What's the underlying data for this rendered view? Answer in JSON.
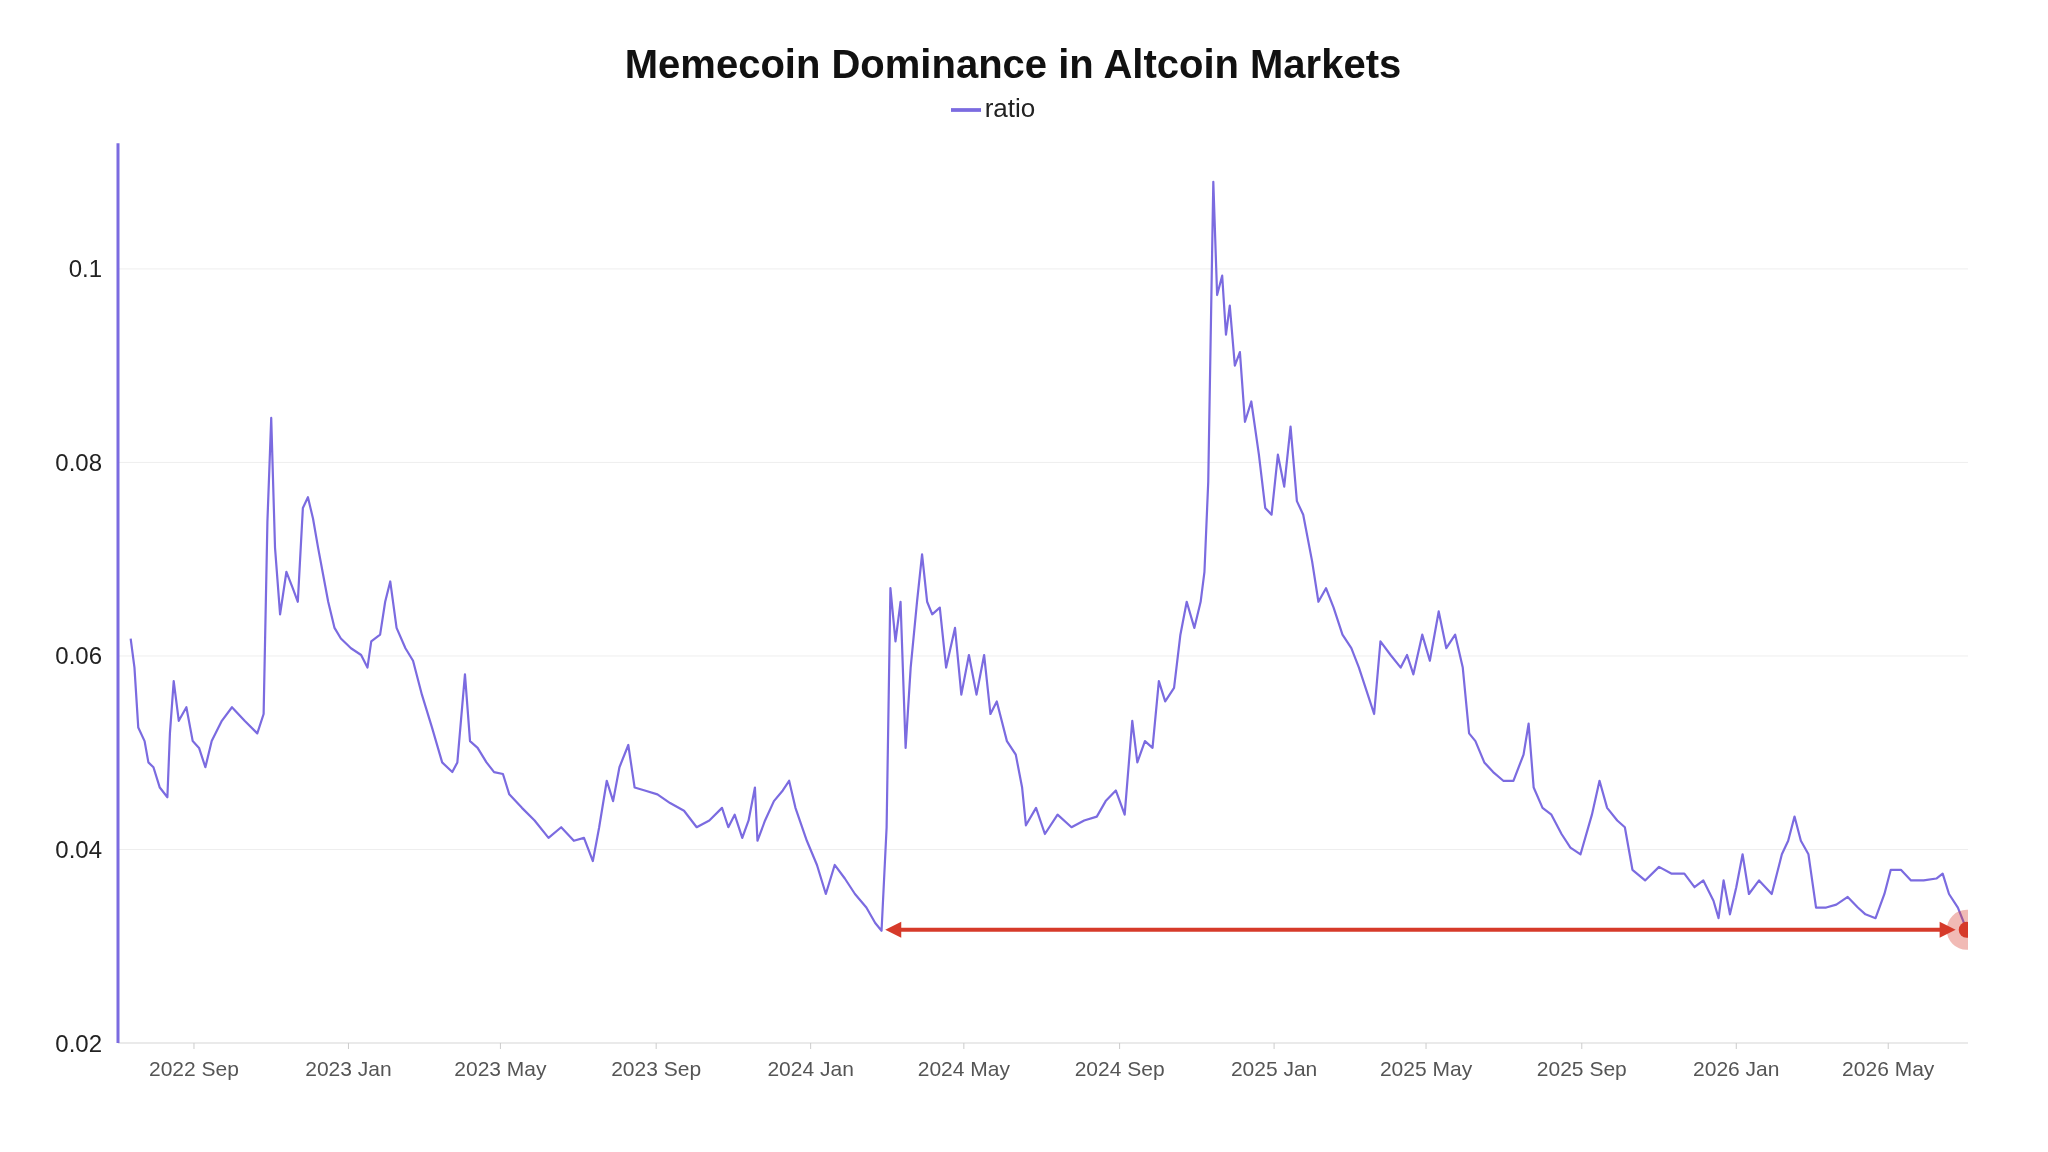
{
  "chart_data": {
    "type": "line",
    "title": "Memecoin Dominance in Altcoin Markets",
    "legend": "top",
    "grid": "y",
    "xlim": [
      "2022-07-03",
      "2026-07-03"
    ],
    "ylim": [
      0.02,
      0.113
    ],
    "yticks": [
      0.02,
      0.04,
      0.06,
      0.08,
      0.1
    ],
    "xticks": [
      {
        "value": "2022-09-01",
        "label": "2022 Sep"
      },
      {
        "value": "2023-01-01",
        "label": "2023 Jan"
      },
      {
        "value": "2023-05-01",
        "label": "2023 May"
      },
      {
        "value": "2023-09-01",
        "label": "2023 Sep"
      },
      {
        "value": "2024-01-01",
        "label": "2024 Jan"
      },
      {
        "value": "2024-05-01",
        "label": "2024 May"
      },
      {
        "value": "2024-09-01",
        "label": "2024 Sep"
      },
      {
        "value": "2025-01-01",
        "label": "2025 Jan"
      },
      {
        "value": "2025-05-01",
        "label": "2025 May"
      },
      {
        "value": "2025-09-01",
        "label": "2025 Sep"
      },
      {
        "value": "2026-01-01",
        "label": "2026 Jan"
      },
      {
        "value": "2026-05-01",
        "label": "2026 May"
      }
    ],
    "series": [
      {
        "name": "ratio",
        "color": "#7b6be0",
        "marker": "none",
        "x": [
          "2022-07-13",
          "2022-07-16",
          "2022-07-19",
          "2022-07-24",
          "2022-07-27",
          "2022-07-31",
          "2022-08-05",
          "2022-08-11",
          "2022-08-13",
          "2022-08-16",
          "2022-08-20",
          "2022-08-26",
          "2022-08-31",
          "2022-09-05",
          "2022-09-10",
          "2022-09-15",
          "2022-09-23",
          "2022-10-01",
          "2022-10-11",
          "2022-10-21",
          "2022-10-26",
          "2022-10-29",
          "2022-11-01",
          "2022-11-04",
          "2022-11-08",
          "2022-11-13",
          "2022-11-18",
          "2022-11-22",
          "2022-11-26",
          "2022-11-30",
          "2022-12-04",
          "2022-12-08",
          "2022-12-12",
          "2022-12-16",
          "2022-12-21",
          "2022-12-26",
          "2023-01-03",
          "2023-01-11",
          "2023-01-16",
          "2023-01-19",
          "2023-01-26",
          "2023-01-30",
          "2023-02-03",
          "2023-02-08",
          "2023-02-15",
          "2023-02-21",
          "2023-02-28",
          "2023-03-08",
          "2023-03-16",
          "2023-03-24",
          "2023-03-28",
          "2023-04-03",
          "2023-04-07",
          "2023-04-13",
          "2023-04-20",
          "2023-04-26",
          "2023-05-03",
          "2023-05-08",
          "2023-05-18",
          "2023-05-28",
          "2023-06-08",
          "2023-06-18",
          "2023-06-28",
          "2023-07-06",
          "2023-07-13",
          "2023-07-18",
          "2023-07-24",
          "2023-07-29",
          "2023-08-03",
          "2023-08-10",
          "2023-08-15",
          "2023-08-23",
          "2023-09-02",
          "2023-09-12",
          "2023-09-23",
          "2023-10-03",
          "2023-10-13",
          "2023-10-23",
          "2023-10-28",
          "2023-11-02",
          "2023-11-08",
          "2023-11-13",
          "2023-11-18",
          "2023-11-20",
          "2023-11-26",
          "2023-12-03",
          "2023-12-10",
          "2023-12-15",
          "2023-12-20",
          "2023-12-29",
          "2024-01-06",
          "2024-01-13",
          "2024-01-20",
          "2024-01-28",
          "2024-02-05",
          "2024-02-14",
          "2024-02-21",
          "2024-02-26",
          "2024-03-01",
          "2024-03-04",
          "2024-03-08",
          "2024-03-12",
          "2024-03-16",
          "2024-03-20",
          "2024-03-25",
          "2024-03-29",
          "2024-04-02",
          "2024-04-06",
          "2024-04-12",
          "2024-04-17",
          "2024-04-24",
          "2024-04-29",
          "2024-05-05",
          "2024-05-11",
          "2024-05-17",
          "2024-05-22",
          "2024-05-27",
          "2024-06-04",
          "2024-06-11",
          "2024-06-16",
          "2024-06-19",
          "2024-06-27",
          "2024-07-04",
          "2024-07-14",
          "2024-07-25",
          "2024-08-04",
          "2024-08-14",
          "2024-08-21",
          "2024-08-29",
          "2024-09-05",
          "2024-09-11",
          "2024-09-15",
          "2024-09-21",
          "2024-09-27",
          "2024-10-02",
          "2024-10-07",
          "2024-10-14",
          "2024-10-19",
          "2024-10-24",
          "2024-10-30",
          "2024-11-04",
          "2024-11-07",
          "2024-11-10",
          "2024-11-14",
          "2024-11-17",
          "2024-11-21",
          "2024-11-24",
          "2024-11-27",
          "2024-12-01",
          "2024-12-05",
          "2024-12-09",
          "2024-12-14",
          "2024-12-20",
          "2024-12-25",
          "2024-12-30",
          "2025-01-04",
          "2025-01-09",
          "2025-01-14",
          "2025-01-19",
          "2025-01-24",
          "2025-01-31",
          "2025-02-05",
          "2025-02-11",
          "2025-02-17",
          "2025-02-24",
          "2025-03-03",
          "2025-03-09",
          "2025-03-16",
          "2025-03-21",
          "2025-03-26",
          "2025-04-03",
          "2025-04-11",
          "2025-04-16",
          "2025-04-21",
          "2025-04-28",
          "2025-05-04",
          "2025-05-11",
          "2025-05-17",
          "2025-05-24",
          "2025-05-30",
          "2025-06-04",
          "2025-06-09",
          "2025-06-16",
          "2025-06-23",
          "2025-07-01",
          "2025-07-09",
          "2025-07-17",
          "2025-07-21",
          "2025-07-25",
          "2025-08-01",
          "2025-08-08",
          "2025-08-16",
          "2025-08-23",
          "2025-08-31",
          "2025-09-09",
          "2025-09-15",
          "2025-09-21",
          "2025-09-29",
          "2025-10-05",
          "2025-10-11",
          "2025-10-21",
          "2025-11-01",
          "2025-11-11",
          "2025-11-21",
          "2025-11-29",
          "2025-12-06",
          "2025-12-14",
          "2025-12-18",
          "2025-12-22",
          "2025-12-27",
          "2026-01-01",
          "2026-01-06",
          "2026-01-11",
          "2026-01-19",
          "2026-01-29",
          "2026-02-06",
          "2026-02-11",
          "2026-02-16",
          "2026-02-21",
          "2026-02-27",
          "2026-03-05",
          "2026-03-13",
          "2026-03-21",
          "2026-03-30",
          "2026-04-07",
          "2026-04-13",
          "2026-04-21",
          "2026-04-28",
          "2026-05-03",
          "2026-05-11",
          "2026-05-19",
          "2026-05-29",
          "2026-06-08",
          "2026-06-13",
          "2026-06-18",
          "2026-06-25",
          "2026-07-02"
        ],
        "values": [
          0.0618,
          0.0588,
          0.0526,
          0.0512,
          0.049,
          0.0485,
          0.0464,
          0.0454,
          0.052,
          0.0574,
          0.0533,
          0.0547,
          0.0512,
          0.0505,
          0.0485,
          0.0512,
          0.0533,
          0.0547,
          0.0533,
          0.052,
          0.054,
          0.0739,
          0.0846,
          0.0712,
          0.0643,
          0.0687,
          0.067,
          0.0656,
          0.0753,
          0.0764,
          0.0742,
          0.0712,
          0.0684,
          0.0656,
          0.0629,
          0.0618,
          0.0608,
          0.0601,
          0.0588,
          0.0615,
          0.0622,
          0.0656,
          0.0677,
          0.0629,
          0.0608,
          0.0595,
          0.056,
          0.0526,
          0.049,
          0.048,
          0.049,
          0.0581,
          0.0512,
          0.0505,
          0.049,
          0.048,
          0.0478,
          0.0457,
          0.0443,
          0.043,
          0.0412,
          0.0423,
          0.0409,
          0.0412,
          0.0388,
          0.0423,
          0.0471,
          0.045,
          0.0485,
          0.0508,
          0.0464,
          0.0461,
          0.0457,
          0.0448,
          0.044,
          0.0423,
          0.043,
          0.0443,
          0.0423,
          0.0436,
          0.0412,
          0.043,
          0.0464,
          0.0409,
          0.043,
          0.045,
          0.0461,
          0.0471,
          0.0443,
          0.0409,
          0.0384,
          0.0354,
          0.0384,
          0.037,
          0.0354,
          0.034,
          0.0324,
          0.0316,
          0.0423,
          0.067,
          0.0615,
          0.0656,
          0.0505,
          0.0588,
          0.0656,
          0.0705,
          0.0656,
          0.0643,
          0.065,
          0.0588,
          0.0629,
          0.056,
          0.0601,
          0.056,
          0.0601,
          0.054,
          0.0553,
          0.0512,
          0.0498,
          0.0464,
          0.0425,
          0.0443,
          0.0416,
          0.0436,
          0.0423,
          0.043,
          0.0434,
          0.045,
          0.0461,
          0.0436,
          0.0533,
          0.049,
          0.0512,
          0.0505,
          0.0574,
          0.0553,
          0.0567,
          0.0622,
          0.0656,
          0.0629,
          0.0656,
          0.0687,
          0.078,
          0.109,
          0.0973,
          0.0993,
          0.0932,
          0.0962,
          0.09,
          0.0914,
          0.0842,
          0.0863,
          0.0808,
          0.0753,
          0.0746,
          0.0808,
          0.0775,
          0.0837,
          0.076,
          0.0746,
          0.0698,
          0.0656,
          0.067,
          0.065,
          0.0622,
          0.0608,
          0.0588,
          0.056,
          0.054,
          0.0615,
          0.0601,
          0.0588,
          0.0601,
          0.0581,
          0.0622,
          0.0595,
          0.0646,
          0.0608,
          0.0622,
          0.0588,
          0.052,
          0.0512,
          0.049,
          0.048,
          0.0471,
          0.0471,
          0.0498,
          0.053,
          0.0464,
          0.0443,
          0.0436,
          0.0416,
          0.0402,
          0.0395,
          0.0436,
          0.0471,
          0.0443,
          0.043,
          0.0423,
          0.0379,
          0.0368,
          0.0382,
          0.0375,
          0.0375,
          0.0361,
          0.0368,
          0.0347,
          0.0329,
          0.0368,
          0.0333,
          0.0361,
          0.0395,
          0.0354,
          0.0368,
          0.0354,
          0.0395,
          0.0409,
          0.0434,
          0.0409,
          0.0395,
          0.034,
          0.034,
          0.0343,
          0.0351,
          0.034,
          0.0333,
          0.0329,
          0.0354,
          0.0379,
          0.0379,
          0.0368,
          0.0368,
          0.037,
          0.0375,
          0.0354,
          0.034,
          0.0317
        ]
      },
      {
        "type": "scatter",
        "color": "#d63a2a",
        "marker": "circle",
        "x": [
          "2026-07-02"
        ],
        "values": [
          0.0317
        ]
      }
    ]
  }
}
